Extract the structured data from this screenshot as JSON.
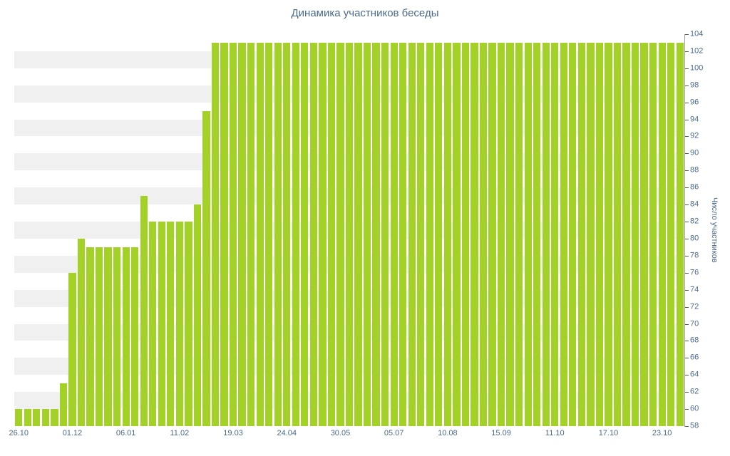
{
  "chart": {
    "title": "Динамика участников беседы",
    "y_axis_title": "Число участников"
  },
  "chart_data": {
    "type": "bar",
    "title": "Динамика участников беседы",
    "xlabel": "",
    "ylabel": "Число участников",
    "ylim": [
      58,
      104
    ],
    "y_tick_step": 2,
    "y_tick_labels": [
      "58",
      "60",
      "62",
      "64",
      "66",
      "68",
      "70",
      "72",
      "74",
      "76",
      "78",
      "80",
      "82",
      "84",
      "86",
      "88",
      "90",
      "92",
      "94",
      "96",
      "98",
      "100",
      "102",
      "104"
    ],
    "x_tick_labels": [
      "26.10",
      "01.12",
      "06.01",
      "11.02",
      "19.03",
      "24.04",
      "30.05",
      "05.07",
      "10.08",
      "15.09",
      "11.10",
      "17.10",
      "23.10"
    ],
    "x_tick_every": 6,
    "grid": "alternating-horizontal-bands",
    "legend": "none",
    "values": [
      60,
      60,
      60,
      60,
      60,
      63,
      76,
      80,
      79,
      79,
      79,
      79,
      79,
      79,
      85,
      82,
      82,
      82,
      82,
      82,
      84,
      95,
      103,
      103,
      103,
      103,
      103,
      103,
      103,
      103,
      103,
      103,
      103,
      103,
      103,
      103,
      103,
      103,
      103,
      103,
      103,
      103,
      103,
      103,
      103,
      103,
      103,
      103,
      103,
      103,
      103,
      103,
      103,
      103,
      103,
      103,
      103,
      103,
      103,
      103,
      103,
      103,
      103,
      103,
      103,
      103,
      103,
      103,
      103,
      103,
      103,
      103,
      103,
      103,
      103
    ],
    "colors": {
      "bar": "#a4d128",
      "band": "#f0f0f0",
      "axis": "#9e9e9e",
      "tick": "#555555",
      "text": "#4a6b8e"
    }
  }
}
